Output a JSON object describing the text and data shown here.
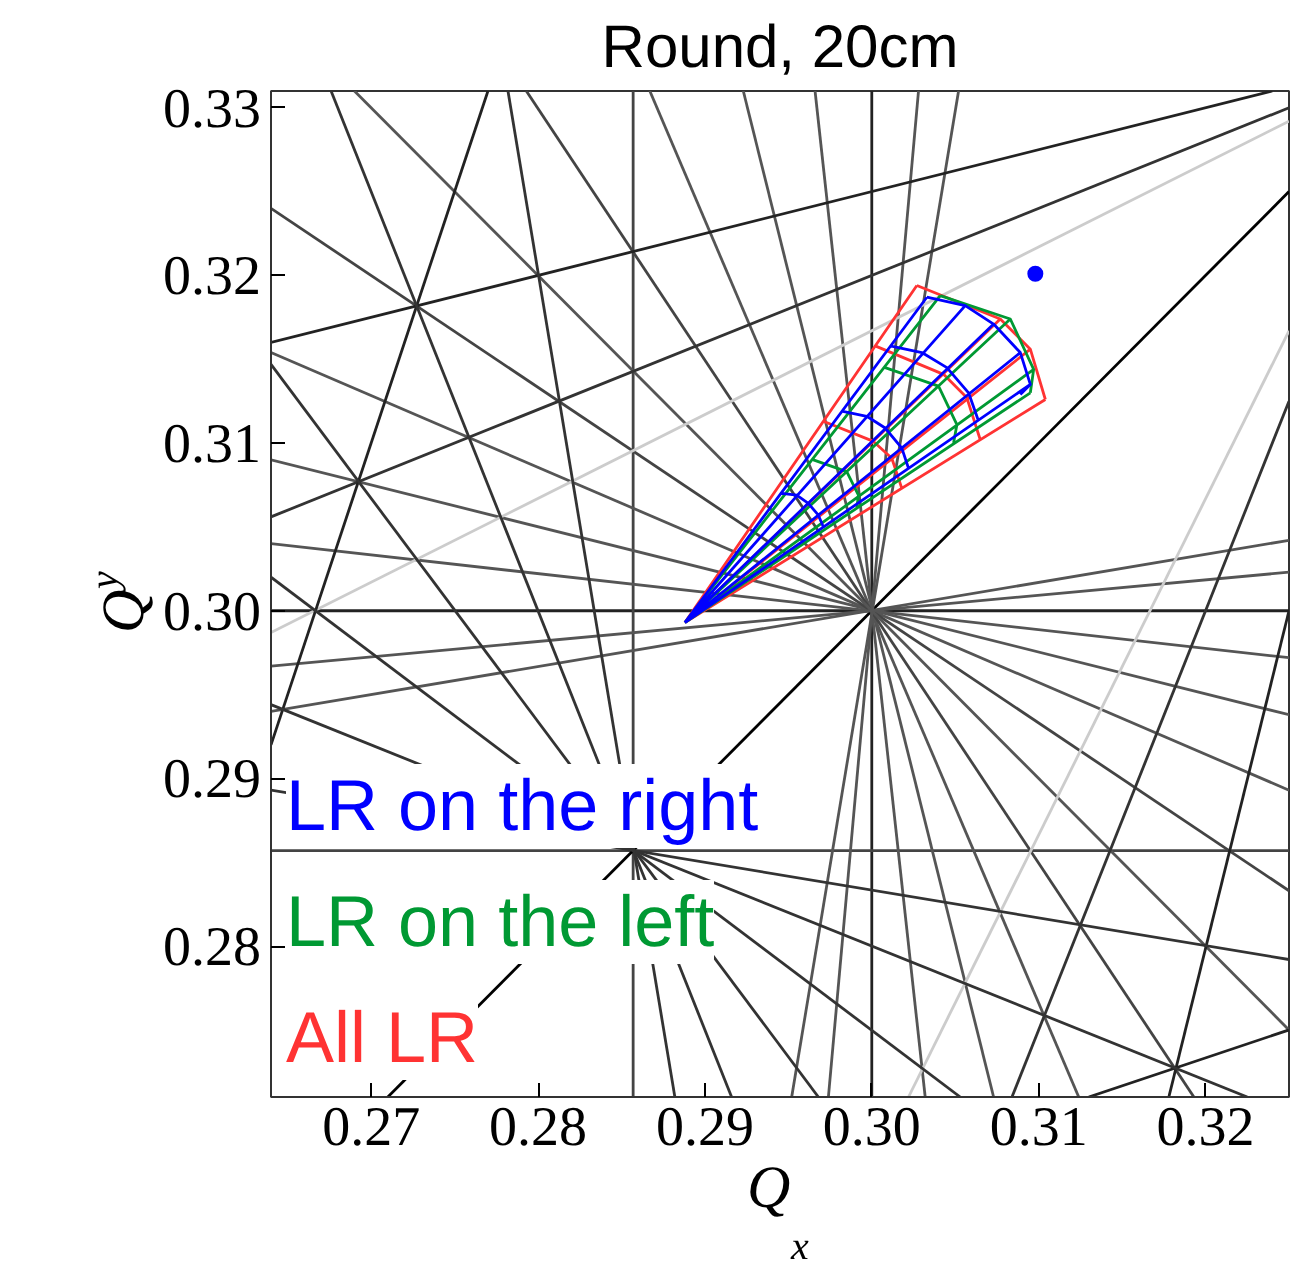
{
  "chart_data": {
    "type": "line",
    "title": "Round, 20cm",
    "xlabel": "Q$_{x}$",
    "ylabel": "Q$_{y}$",
    "xlim": [
      0.264,
      0.325
    ],
    "ylim": [
      0.271,
      0.331
    ],
    "xticks": [
      0.27,
      0.28,
      0.29,
      {
        "value": 0.3,
        "label": "0.30"
      },
      0.31,
      0.32
    ],
    "yticks": [
      0.28,
      0.29,
      {
        "value": 0.3,
        "label": "0.30"
      },
      0.31,
      0.32,
      0.33
    ],
    "grid": false,
    "legend": "bottom left",
    "marker": "none",
    "line_style": "solid",
    "series": [
      {
        "color": "#222222",
        "x": [
          0.3,
          0.3
        ],
        "values": [
          0.271,
          0.331
        ]
      },
      {
        "color": "#222222",
        "x": [
          0.264,
          0.325
        ],
        "values": [
          0.3,
          0.3
        ]
      },
      {
        "color": "#444444",
        "x": [
          0.2857,
          0.2857
        ],
        "values": [
          0.271,
          0.331
        ]
      },
      {
        "color": "#444444",
        "x": [
          0.264,
          0.325
        ],
        "values": [
          0.2857,
          0.2857
        ]
      },
      {
        "color": "#000000",
        "x": [
          0.271,
          0.325
        ],
        "values": [
          0.271,
          0.325
        ]
      },
      {
        "color": "#555555",
        "x": [
          0.3032,
          0.2966
        ],
        "values": [
          0.271,
          0.331
        ]
      },
      {
        "color": "#555555",
        "x": [
          0.264,
          0.325
        ],
        "values": [
          0.304,
          0.2972
        ]
      },
      {
        "color": "#555555",
        "x": [
          0.3073,
          0.2923
        ],
        "values": [
          0.271,
          0.331
        ]
      },
      {
        "color": "#555555",
        "x": [
          0.264,
          0.325
        ],
        "values": [
          0.309,
          0.2938
        ]
      },
      {
        "color": "#555555",
        "x": [
          0.3124,
          0.2867
        ],
        "values": [
          0.271,
          0.331
        ]
      },
      {
        "color": "#555555",
        "x": [
          0.264,
          0.325
        ],
        "values": [
          0.3154,
          0.2893
        ]
      },
      {
        "color": "#444444",
        "x": [
          0.3193,
          0.2793
        ],
        "values": [
          0.271,
          0.331
        ]
      },
      {
        "color": "#444444",
        "x": [
          0.264,
          0.325
        ],
        "values": [
          0.324,
          0.2833
        ]
      },
      {
        "color": "#555555",
        "x": [
          0.269,
          0.325
        ],
        "values": [
          0.331,
          0.275
        ]
      },
      {
        "color": "#555555",
        "x": [
          0.264,
          0.325
        ],
        "values": [
          0.294,
          0.3042
        ]
      },
      {
        "color": "#555555",
        "x": [
          0.2952,
          0.3052
        ],
        "values": [
          0.271,
          0.331
        ]
      },
      {
        "color": "#555555",
        "x": [
          0.2974,
          0.3028
        ],
        "values": [
          0.271,
          0.331
        ]
      },
      {
        "color": "#555555",
        "x": [
          0.264,
          0.325
        ],
        "values": [
          0.2967,
          0.3023
        ]
      },
      {
        "color": "#222222",
        "x": [
          0.264,
          0.324
        ],
        "values": [
          0.316,
          0.331
        ]
      },
      {
        "color": "#222222",
        "x": [
          0.3178,
          0.325
        ],
        "values": [
          0.271,
          0.3
        ]
      },
      {
        "color": "#333333",
        "x": [
          0.264,
          0.325
        ],
        "values": [
          0.3056,
          0.33
        ]
      },
      {
        "color": "#333333",
        "x": [
          0.3084,
          0.325
        ],
        "values": [
          0.271,
          0.3125
        ]
      },
      {
        "color": "#cccccc",
        "x": [
          0.264,
          0.325
        ],
        "values": [
          0.2987,
          0.3292
        ]
      },
      {
        "color": "#cccccc",
        "x": [
          0.3022,
          0.325
        ],
        "values": [
          0.271,
          0.3167
        ]
      },
      {
        "color": "#222222",
        "x": [
          0.264,
          0.277
        ],
        "values": [
          0.292,
          0.331
        ]
      },
      {
        "color": "#222222",
        "x": [
          0.313,
          0.325
        ],
        "values": [
          0.271,
          0.275
        ]
      },
      {
        "color": "#333333",
        "x": [
          0.264,
          0.3053
        ],
        "values": [
          0.302,
          0.271
        ]
      },
      {
        "color": "#333333",
        "x": [
          0.264,
          0.2968
        ],
        "values": [
          0.3147,
          0.271
        ]
      },
      {
        "color": "#333333",
        "x": [
          0.264,
          0.3225
        ],
        "values": [
          0.2944,
          0.271
        ]
      },
      {
        "color": "#333333",
        "x": [
          0.2916,
          0.2676
        ],
        "values": [
          0.271,
          0.331
        ]
      },
      {
        "color": "#333333",
        "x": [
          0.264,
          0.325
        ],
        "values": [
          0.2893,
          0.2792
        ]
      },
      {
        "color": "#333333",
        "x": [
          0.2882,
          0.2782
        ],
        "values": [
          0.271,
          0.331
        ]
      },
      {
        "name": "LR on the right",
        "color": "#0000ff",
        "x": [
          0.2888,
          0.3033,
          null,
          0.2888,
          0.3056,
          null,
          0.2888,
          0.3073,
          null,
          0.2888,
          0.3089,
          null,
          0.2888,
          0.3095,
          null,
          0.2946,
          0.2955,
          0.2962,
          0.2968,
          0.2971,
          null,
          0.2982,
          0.2997,
          0.3008,
          0.3018,
          0.3022,
          null,
          0.3011,
          0.303,
          0.3045,
          0.3058,
          0.3064,
          null,
          0.3033,
          0.3056,
          0.3073,
          0.3089,
          0.3095,
          0.3089
        ],
        "values": [
          0.2993,
          0.3187,
          null,
          0.2993,
          0.3182,
          null,
          0.2993,
          0.3171,
          null,
          0.2993,
          0.3154,
          null,
          0.2993,
          0.3135,
          null,
          0.307,
          0.3069,
          0.3064,
          0.3057,
          0.305,
          null,
          0.3119,
          0.3116,
          0.3109,
          0.3097,
          0.3085,
          null,
          0.3158,
          0.3154,
          0.3145,
          0.313,
          0.3113,
          null,
          0.3187,
          0.3182,
          0.3171,
          0.3154,
          0.3135,
          0.3129
        ]
      },
      {
        "name": "LR on the left",
        "color": "#009933",
        "x": [
          0.2888,
          0.3041,
          null,
          0.2888,
          0.3083,
          null,
          0.2888,
          0.3097,
          null,
          0.2888,
          0.3095,
          null,
          0.2965,
          0.2985,
          0.2992,
          0.2991,
          null,
          0.3008,
          0.304,
          0.3051,
          0.3049,
          null,
          0.3041,
          0.3083,
          0.3097,
          0.3095
        ],
        "values": [
          0.2993,
          0.3188,
          null,
          0.2993,
          0.3174,
          null,
          0.2993,
          0.3144,
          null,
          0.2993,
          0.313,
          null,
          0.309,
          0.3083,
          0.3069,
          0.3061,
          null,
          0.3145,
          0.3134,
          0.3111,
          0.31,
          null,
          0.3188,
          0.3174,
          0.3144,
          0.313
        ]
      },
      {
        "name": "All LR",
        "color": "#ff3333",
        "x": [
          0.2888,
          0.3027,
          null,
          0.2888,
          0.3077,
          null,
          0.2888,
          0.3095,
          null,
          0.2888,
          0.3104,
          null,
          0.2971,
          0.3001,
          0.3012,
          0.3018,
          null,
          0.3002,
          0.3043,
          0.3057,
          0.3065,
          null,
          0.3027,
          0.3077,
          0.3095,
          0.3104
        ],
        "values": [
          0.2993,
          0.3194,
          null,
          0.2993,
          0.3174,
          null,
          0.2993,
          0.3156,
          null,
          0.2993,
          0.3126,
          null,
          0.3113,
          0.3101,
          0.3091,
          0.3073,
          null,
          0.3158,
          0.3141,
          0.3127,
          0.3102,
          null,
          0.3194,
          0.3174,
          0.3156,
          0.3126
        ]
      },
      {
        "type": "scatter",
        "marker": "circle",
        "color": "#0000ff",
        "x": [
          0.3098
        ],
        "values": [
          0.3201
        ]
      }
    ]
  }
}
